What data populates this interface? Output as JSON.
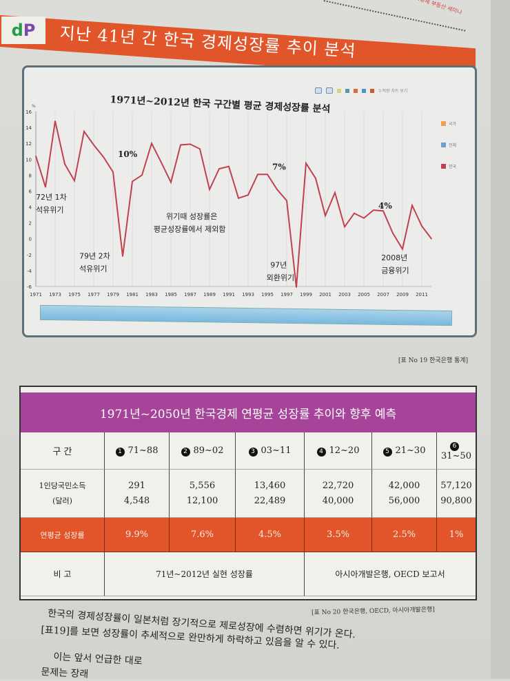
{
  "header": {
    "running_head": "…경제 부동산 세미나",
    "logo": "dP",
    "title": "지난 41년 간 한국 경제성장률 추이 분석"
  },
  "chart": {
    "toolbar_label": "누적량 차트 보기",
    "legend": [
      "전체",
      "한국",
      "국가"
    ]
  },
  "chart_data": {
    "type": "line",
    "title": "1971년~2012년 한국 구간별 평균 경제성장률 분석",
    "ylabel": "%",
    "ylim": [
      -6,
      16
    ],
    "yticks": [
      16,
      14,
      12,
      10,
      8,
      6,
      4,
      2,
      0,
      -2,
      -4,
      -6
    ],
    "xticks": [
      "1971",
      "1973",
      "1975",
      "1977",
      "1979",
      "1981",
      "1983",
      "1985",
      "1987",
      "1989",
      "1991",
      "1993",
      "1995",
      "1997",
      "1999",
      "2001",
      "2003",
      "2005",
      "2007",
      "2009",
      "2011"
    ],
    "x": [
      1971,
      1972,
      1973,
      1974,
      1975,
      1976,
      1977,
      1978,
      1979,
      1980,
      1981,
      1982,
      1983,
      1984,
      1985,
      1986,
      1987,
      1988,
      1989,
      1990,
      1991,
      1992,
      1993,
      1994,
      1995,
      1996,
      1997,
      1998,
      1999,
      2000,
      2001,
      2002,
      2003,
      2004,
      2005,
      2006,
      2007,
      2008,
      2009,
      2010,
      2011,
      2012
    ],
    "series": [
      {
        "name": "한국",
        "color": "#c0404f",
        "values": [
          10.4,
          6.5,
          14.8,
          9.4,
          7.3,
          13.5,
          11.8,
          10.3,
          8.4,
          -2.2,
          7.2,
          8.0,
          12.0,
          9.6,
          7.1,
          11.8,
          11.9,
          11.3,
          6.2,
          8.8,
          9.1,
          5.1,
          5.5,
          8.1,
          8.1,
          6.2,
          4.8,
          -6.1,
          9.5,
          7.6,
          2.9,
          5.8,
          1.5,
          3.2,
          2.6,
          3.6,
          3.5,
          0.7,
          -1.3,
          4.2,
          1.6,
          0.0
        ]
      }
    ],
    "annotations": [
      {
        "text": "10%",
        "x": 1979.5,
        "y": 10.3,
        "bold": true
      },
      {
        "text": "7%",
        "x": 1995.5,
        "y": 8.7,
        "bold": true
      },
      {
        "text": "4%",
        "x": 2006.5,
        "y": 3.8,
        "bold": true
      },
      {
        "text": "72년 1차",
        "x": 1971,
        "y": 4.9
      },
      {
        "text": "석유위기",
        "x": 1971,
        "y": 3.3
      },
      {
        "text": "79년 2차",
        "x": 1975.5,
        "y": -2.5
      },
      {
        "text": "석유위기",
        "x": 1975.5,
        "y": -4.1
      },
      {
        "text": "위기때 성장률은",
        "x": 1984.5,
        "y": 2.5
      },
      {
        "text": "평균성장률에서 제외함",
        "x": 1983.2,
        "y": 0.9
      },
      {
        "text": "97년",
        "x": 1995.3,
        "y": -3.6
      },
      {
        "text": "외환위기",
        "x": 1994.9,
        "y": -5.2
      },
      {
        "text": "2008년",
        "x": 2006.8,
        "y": -2.7
      },
      {
        "text": "금융위기",
        "x": 2006.8,
        "y": -4.3
      }
    ]
  },
  "captions": {
    "chart_source": "[표 No 19 한국은행 통계]",
    "table_source": "[표 No 20 한국은행, OECD, 아시아개발은행]"
  },
  "table": {
    "title": "1971년~2050년 한국경제 연평균 성장률 추이와 향후 예측",
    "row_labels": {
      "period": "구 간",
      "income": "1인당국민소득",
      "income_unit": "(달러)",
      "growth": "연평균 성장률",
      "note": "비 고"
    },
    "periods": [
      {
        "num": "1",
        "range": "71~88",
        "income_start": "291",
        "income_end": "4,548",
        "growth": "9.9%"
      },
      {
        "num": "2",
        "range": "89~02",
        "income_start": "5,556",
        "income_end": "12,100",
        "growth": "7.6%"
      },
      {
        "num": "3",
        "range": "03~11",
        "income_start": "13,460",
        "income_end": "22,489",
        "growth": "4.5%"
      },
      {
        "num": "4",
        "range": "12~20",
        "income_start": "22,720",
        "income_end": "40,000",
        "growth": "3.5%"
      },
      {
        "num": "5",
        "range": "21~30",
        "income_start": "42,000",
        "income_end": "56,000",
        "growth": "2.5%"
      },
      {
        "num": "6",
        "range": "31~50",
        "income_start": "57,120",
        "income_end": "90,800",
        "growth": "1%"
      }
    ],
    "notes": {
      "actual": "71년~2012년 실현 성장률",
      "forecast": "아시아개발은행, OECD 보고서"
    }
  },
  "body": {
    "lines": [
      "한국의 경제성장률이 일본처럼 장기적으로 제로성장에 수렴하면 위기가 온다.",
      "[표19]를 보면 성장률이 추세적으로 완만하게 하락하고 있음을 알 수 있다.",
      "이는 앞서 언급한 대로",
      "문제는 장래"
    ]
  }
}
